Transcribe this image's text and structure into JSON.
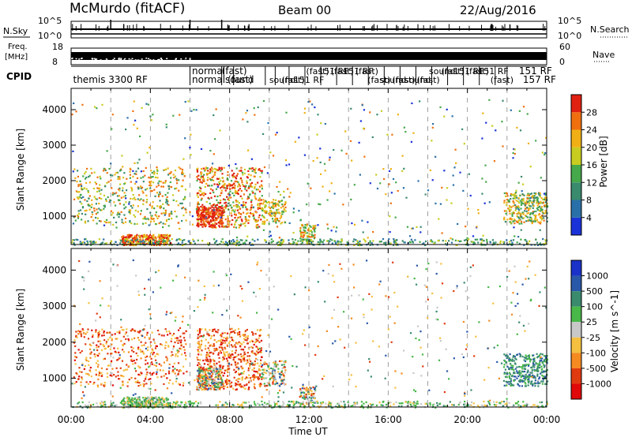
{
  "header": {
    "title": "McMurdo (fitACF)",
    "beam": "Beam 00",
    "date": "22/Aug/2016"
  },
  "strip": {
    "nsky_label": "N.Sky",
    "nsky_ticks": [
      "10^5",
      "10^0"
    ],
    "nsearch_label": "N.Search",
    "nsearch_ticks": [
      "10^5",
      "10^0"
    ],
    "freq_label_1": "Freq.",
    "freq_label_2": "[MHz]",
    "freq_ticks": [
      "18",
      "8"
    ],
    "nave_label": "Nave",
    "nave_ticks": [
      "60",
      "0"
    ],
    "cpid_label": "CPID",
    "cpid_texts": [
      {
        "text": "themis 3300 RF",
        "hour": 0.1,
        "row": 1
      },
      {
        "text": "normal",
        "hour": 6.1,
        "row": 0
      },
      {
        "text": "normalsound",
        "hour": 6.1,
        "row": 1
      },
      {
        "text": "(fast)",
        "hour": 7.6,
        "row": 0
      },
      {
        "text": "(fast)",
        "hour": 7.9,
        "row": 1
      },
      {
        "text": "151 RF",
        "hour": 22.6,
        "row": 0
      },
      {
        "text": "157 RF",
        "hour": 22.8,
        "row": 1
      }
    ]
  },
  "chart_data": [
    {
      "type": "heatmap",
      "name": "power",
      "ylabel": "Slant Range [km]",
      "yticks": [
        1000,
        2000,
        3000,
        4000
      ],
      "ylim": [
        200,
        4600
      ],
      "colorbar_label": "Power [dB]",
      "colorbar_ticks": [
        "4",
        "8",
        "12",
        "16",
        "20",
        "24",
        "28"
      ],
      "colorbar_colors": [
        "#1a32d8",
        "#2a70a8",
        "#3a8a6e",
        "#45a84a",
        "#c8cc20",
        "#f0b015",
        "#f07010",
        "#e02010"
      ],
      "grid": "dashed vertical at 2-hour intervals"
    },
    {
      "type": "heatmap",
      "name": "velocity",
      "ylabel": "Slant Range [km]",
      "yticks": [
        1000,
        2000,
        3000,
        4000
      ],
      "ylim": [
        200,
        4600
      ],
      "xlabel": "Time UT",
      "xticks": [
        "00:00",
        "04:00",
        "08:00",
        "12:00",
        "16:00",
        "20:00",
        "00:00"
      ],
      "xlim_hours": [
        0,
        24
      ],
      "colorbar_label": "Velocity [m s^-1]",
      "colorbar_ticks": [
        "1000",
        "500",
        "100",
        "25",
        "-25",
        "-100",
        "-500",
        "-1000"
      ],
      "colorbar_colors": [
        "#1a32c8",
        "#2a58a8",
        "#3a8a6e",
        "#48b848",
        "#c8c8c8",
        "#f5c040",
        "#f58a20",
        "#e03a10",
        "#e00808"
      ],
      "grid": "dashed vertical at 2-hour intervals"
    }
  ]
}
